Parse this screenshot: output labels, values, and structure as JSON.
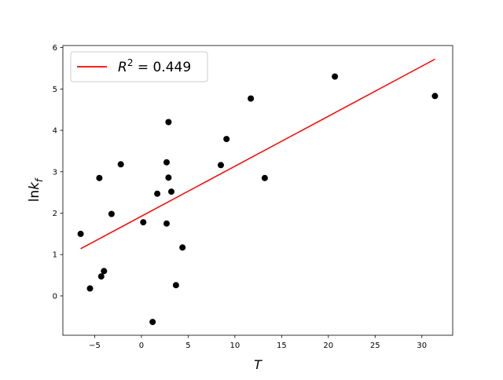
{
  "chart_data": {
    "type": "scatter",
    "xlabel": "T",
    "ylabel_base": "ln",
    "ylabel_var": "k",
    "ylabel_sub": "f",
    "xlim": [
      -8.4,
      33.3
    ],
    "ylim": [
      -0.95,
      6.05
    ],
    "xticks": [
      -5,
      0,
      5,
      10,
      15,
      20,
      25,
      30
    ],
    "xtick_labels": [
      "−5",
      "0",
      "5",
      "10",
      "15",
      "20",
      "25",
      "30"
    ],
    "yticks": [
      0,
      1,
      2,
      3,
      4,
      5,
      6
    ],
    "ytick_labels": [
      "0",
      "1",
      "2",
      "3",
      "4",
      "5",
      "6"
    ],
    "grid": false,
    "legend": {
      "placement": "top-left",
      "entries": [
        {
          "label_var": "R",
          "label_sup": "2",
          "label_value": " = 0.449"
        }
      ]
    },
    "series": [
      {
        "kind": "scatter",
        "color": "#000000",
        "points": [
          {
            "x": -6.5,
            "y": 1.5
          },
          {
            "x": -5.5,
            "y": 0.18
          },
          {
            "x": -4.5,
            "y": 2.85
          },
          {
            "x": -4.3,
            "y": 0.47
          },
          {
            "x": -4.0,
            "y": 0.6
          },
          {
            "x": -3.2,
            "y": 1.98
          },
          {
            "x": -2.2,
            "y": 3.18
          },
          {
            "x": 0.2,
            "y": 1.78
          },
          {
            "x": 1.2,
            "y": -0.63
          },
          {
            "x": 1.7,
            "y": 2.47
          },
          {
            "x": 2.7,
            "y": 3.23
          },
          {
            "x": 2.7,
            "y": 1.75
          },
          {
            "x": 2.9,
            "y": 4.2
          },
          {
            "x": 2.9,
            "y": 2.86
          },
          {
            "x": 3.2,
            "y": 2.52
          },
          {
            "x": 3.7,
            "y": 0.26
          },
          {
            "x": 4.4,
            "y": 1.17
          },
          {
            "x": 8.5,
            "y": 3.16
          },
          {
            "x": 9.1,
            "y": 3.79
          },
          {
            "x": 11.7,
            "y": 4.77
          },
          {
            "x": 13.2,
            "y": 2.85
          },
          {
            "x": 20.7,
            "y": 5.3
          },
          {
            "x": 31.4,
            "y": 4.83
          }
        ]
      },
      {
        "kind": "line",
        "color": "#ff0000",
        "points": [
          {
            "x": -6.5,
            "y": 1.14
          },
          {
            "x": 31.4,
            "y": 5.72
          }
        ]
      }
    ]
  }
}
